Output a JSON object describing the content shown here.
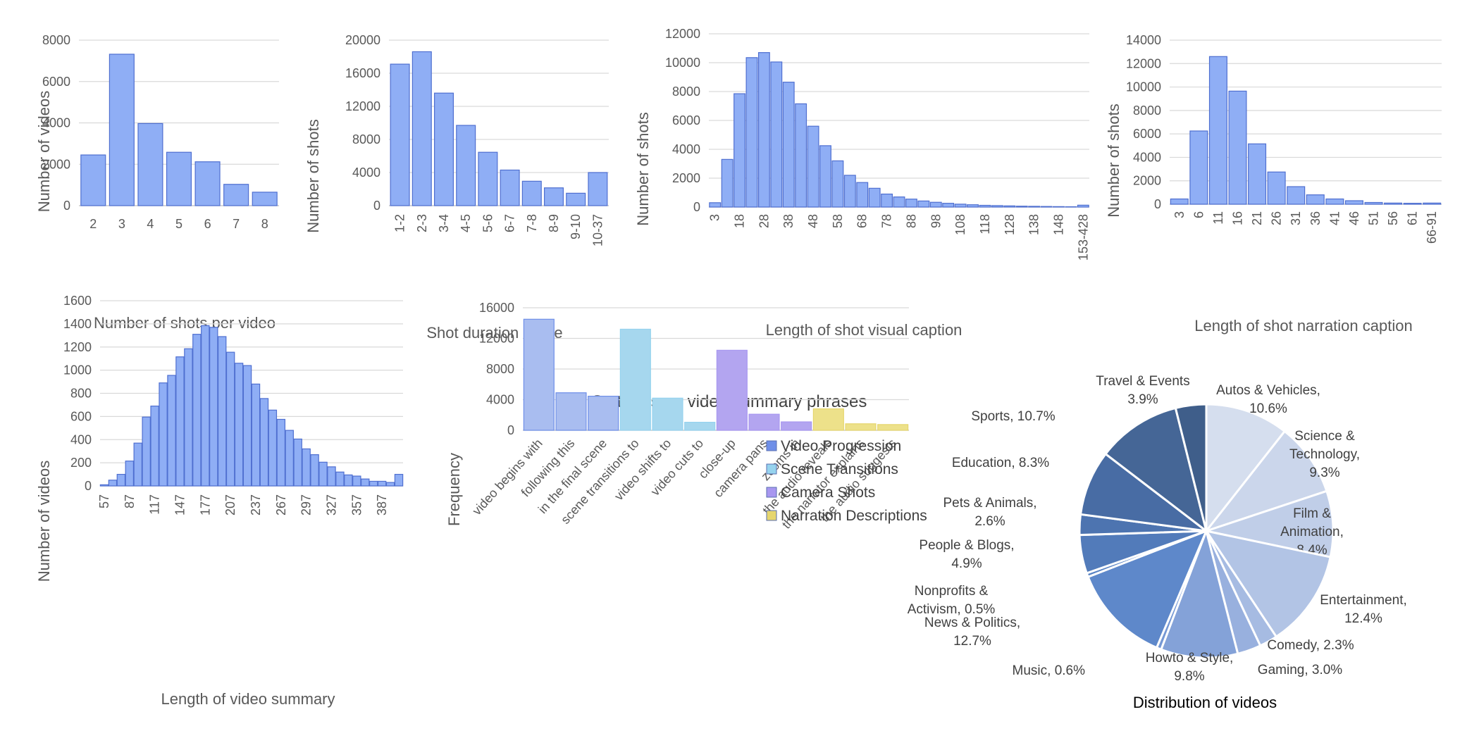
{
  "chart_data": [
    {
      "type": "bar",
      "categories": [
        "2",
        "3",
        "4",
        "5",
        "6",
        "7",
        "8"
      ],
      "values": [
        2450,
        7320,
        3970,
        2580,
        2120,
        1030,
        650
      ],
      "title": "",
      "xlabel": "Number of shots per video",
      "ylabel": "Number of videos",
      "ylim": [
        0,
        8000
      ],
      "yticks": [
        "0",
        "2000",
        "4000",
        "6000",
        "8000"
      ],
      "grid": true,
      "color": "#8FAEF5"
    },
    {
      "type": "bar",
      "categories": [
        "1-2",
        "2-3",
        "3-4",
        "4-5",
        "5-6",
        "6-7",
        "7-8",
        "8-9",
        "9-10",
        "10-37"
      ],
      "values": [
        17100,
        18600,
        13600,
        9700,
        6450,
        4300,
        2950,
        2150,
        1500,
        4000
      ],
      "title": "",
      "xlabel": "Shot duration range",
      "ylabel": "Number of shots",
      "ylim": [
        0,
        20000
      ],
      "yticks": [
        "0",
        "4000",
        "8000",
        "12000",
        "16000",
        "20000"
      ],
      "grid": true,
      "color": "#8FAEF5"
    },
    {
      "type": "bar",
      "categories": [
        "3",
        "8",
        "18",
        "23",
        "28",
        "33",
        "38",
        "43",
        "48",
        "53",
        "58",
        "63",
        "68",
        "73",
        "78",
        "83",
        "88",
        "93",
        "98",
        "103",
        "108",
        "113",
        "118",
        "123",
        "128",
        "133",
        "138",
        "143",
        "148",
        "153",
        "153-428"
      ],
      "tick_labels": [
        "3",
        "",
        "18",
        "",
        "28",
        "",
        "38",
        "",
        "48",
        "",
        "58",
        "",
        "68",
        "",
        "78",
        "",
        "88",
        "",
        "98",
        "",
        "108",
        "",
        "118",
        "",
        "128",
        "",
        "138",
        "",
        "148",
        "",
        "153-428"
      ],
      "values": [
        300,
        3300,
        7850,
        10350,
        10700,
        10050,
        8650,
        7150,
        5600,
        4250,
        3200,
        2200,
        1700,
        1300,
        900,
        700,
        550,
        420,
        330,
        260,
        200,
        160,
        120,
        100,
        80,
        60,
        50,
        40,
        30,
        20,
        130
      ],
      "title": "",
      "xlabel": "Length of shot visual caption",
      "ylabel": "Number of shots",
      "ylim": [
        0,
        12000
      ],
      "yticks": [
        "0",
        "2000",
        "4000",
        "6000",
        "8000",
        "10000",
        "12000"
      ],
      "grid": true,
      "color": "#8FAEF5"
    },
    {
      "type": "bar",
      "categories": [
        "3",
        "6",
        "11",
        "16",
        "21",
        "26",
        "31",
        "36",
        "41",
        "46",
        "51",
        "56",
        "61",
        "66-91"
      ],
      "values": [
        450,
        6250,
        12600,
        9650,
        5150,
        2750,
        1500,
        800,
        450,
        300,
        150,
        100,
        80,
        100
      ],
      "title": "",
      "xlabel": "Length of shot narration caption",
      "ylabel": "Number of shots",
      "ylim": [
        0,
        14000
      ],
      "yticks": [
        "0",
        "2000",
        "4000",
        "6000",
        "8000",
        "10000",
        "12000",
        "14000"
      ],
      "grid": true,
      "color": "#8FAEF5"
    },
    {
      "type": "bar",
      "categories": [
        "57",
        "67",
        "77",
        "87",
        "97",
        "107",
        "117",
        "127",
        "137",
        "147",
        "157",
        "167",
        "177",
        "187",
        "197",
        "207",
        "217",
        "227",
        "237",
        "247",
        "257",
        "267",
        "277",
        "287",
        "297",
        "307",
        "317",
        "327",
        "337",
        "347",
        "357",
        "367",
        "377",
        "387",
        "397",
        "407"
      ],
      "tick_labels": [
        "57",
        "",
        "",
        "87",
        "",
        "",
        "117",
        "",
        "",
        "147",
        "",
        "",
        "177",
        "",
        "",
        "207",
        "",
        "",
        "237",
        "",
        "",
        "267",
        "",
        "",
        "297",
        "",
        "",
        "327",
        "",
        "",
        "357",
        "",
        "",
        "387",
        "",
        ""
      ],
      "values": [
        10,
        50,
        100,
        215,
        370,
        595,
        690,
        890,
        955,
        1115,
        1185,
        1310,
        1385,
        1370,
        1290,
        1155,
        1060,
        1040,
        880,
        755,
        655,
        575,
        480,
        405,
        320,
        270,
        205,
        165,
        120,
        95,
        85,
        60,
        40,
        40,
        30,
        100
      ],
      "title": "",
      "xlabel": "Length of video summary",
      "ylabel": "Number of videos",
      "ylim": [
        0,
        1600
      ],
      "yticks": [
        "0",
        "200",
        "400",
        "600",
        "800",
        "1000",
        "1200",
        "1400",
        "1600"
      ],
      "grid": true,
      "color": "#8FAEF5"
    },
    {
      "type": "bar",
      "title": "Statistics on video summary phrases",
      "xlabel": "",
      "ylabel": "Frequency",
      "ylim": [
        0,
        16000
      ],
      "yticks": [
        "0",
        "4000",
        "8000",
        "12000",
        "16000"
      ],
      "grid": true,
      "legend_position": "right",
      "categories": [
        "video begins with",
        "following this",
        "in the final scene",
        "scene transitions to",
        "video shifts to",
        "video cuts to",
        "close-up",
        "camera pans",
        "zooms in",
        "the audio reveals",
        "the narrator explains",
        "the audio suggests"
      ],
      "values": [
        14500,
        4900,
        4450,
        13200,
        4200,
        1050,
        10450,
        2100,
        1100,
        2800,
        850,
        750
      ],
      "groups": [
        0,
        0,
        0,
        1,
        1,
        1,
        2,
        2,
        2,
        3,
        3,
        3
      ],
      "series": [
        {
          "name": "Video Progression",
          "color": "#A9BDF0",
          "legend_color": "#6F8FE8"
        },
        {
          "name": "Scene Transitions",
          "color": "#A6D7EE",
          "legend_color": "#96D3EE"
        },
        {
          "name": "Camera Shots",
          "color": "#B3A5F0",
          "legend_color": "#A897F0"
        },
        {
          "name": "Narration Descriptions",
          "color": "#EDE18A",
          "legend_color": "#E6D66E"
        }
      ]
    },
    {
      "type": "pie",
      "title": "Distribution of videos",
      "slices": [
        {
          "name": "Autos & Vehicles",
          "value": 10.6,
          "label_lines": [
            "Autos & Vehicles,",
            "10.6%"
          ],
          "color": "#D5DEEE"
        },
        {
          "name": "Science & Technology",
          "value": 9.3,
          "label_lines": [
            "Science &",
            "Technology,",
            "9.3%"
          ],
          "color": "#CBD6EB"
        },
        {
          "name": "Film & Animation",
          "value": 8.4,
          "label_lines": [
            "Film &",
            "Animation,",
            "8.4%"
          ],
          "color": "#C0CEE8"
        },
        {
          "name": "Entertainment",
          "value": 12.4,
          "label_lines": [
            "Entertainment,",
            "12.4%"
          ],
          "color": "#B2C4E5"
        },
        {
          "name": "Comedy",
          "value": 2.3,
          "label_lines": [
            "Comedy, 2.3%"
          ],
          "color": "#A6BBE2"
        },
        {
          "name": "Gaming",
          "value": 3.0,
          "label_lines": [
            "Gaming, 3.0%"
          ],
          "color": "#98B0DE"
        },
        {
          "name": "Howto & Style",
          "value": 9.8,
          "label_lines": [
            "Howto & Style,",
            "9.8%"
          ],
          "color": "#84A2D8"
        },
        {
          "name": "Music",
          "value": 0.6,
          "label_lines": [
            "Music, 0.6%"
          ],
          "color": "#7598D4"
        },
        {
          "name": "News & Politics",
          "value": 12.7,
          "label_lines": [
            "News & Politics,",
            "12.7%"
          ],
          "color": "#5E88CA"
        },
        {
          "name": "Nonprofits & Activism",
          "value": 0.5,
          "label_lines": [
            "Nonprofits &",
            "Activism, 0.5%"
          ],
          "color": "#5782C4"
        },
        {
          "name": "People & Blogs",
          "value": 4.9,
          "label_lines": [
            "People & Blogs,",
            "4.9%"
          ],
          "color": "#527BBA"
        },
        {
          "name": "Pets & Animals",
          "value": 2.6,
          "label_lines": [
            "Pets & Animals,",
            "2.6%"
          ],
          "color": "#4D74B0"
        },
        {
          "name": "Education",
          "value": 8.3,
          "label_lines": [
            "Education, 8.3%"
          ],
          "color": "#486CA4"
        },
        {
          "name": "Sports",
          "value": 10.7,
          "label_lines": [
            "Sports, 10.7%"
          ],
          "color": "#456696"
        },
        {
          "name": "Travel & Events",
          "value": 3.9,
          "label_lines": [
            "Travel & Events",
            "3.9%"
          ],
          "color": "#3F5E8A"
        }
      ]
    }
  ]
}
